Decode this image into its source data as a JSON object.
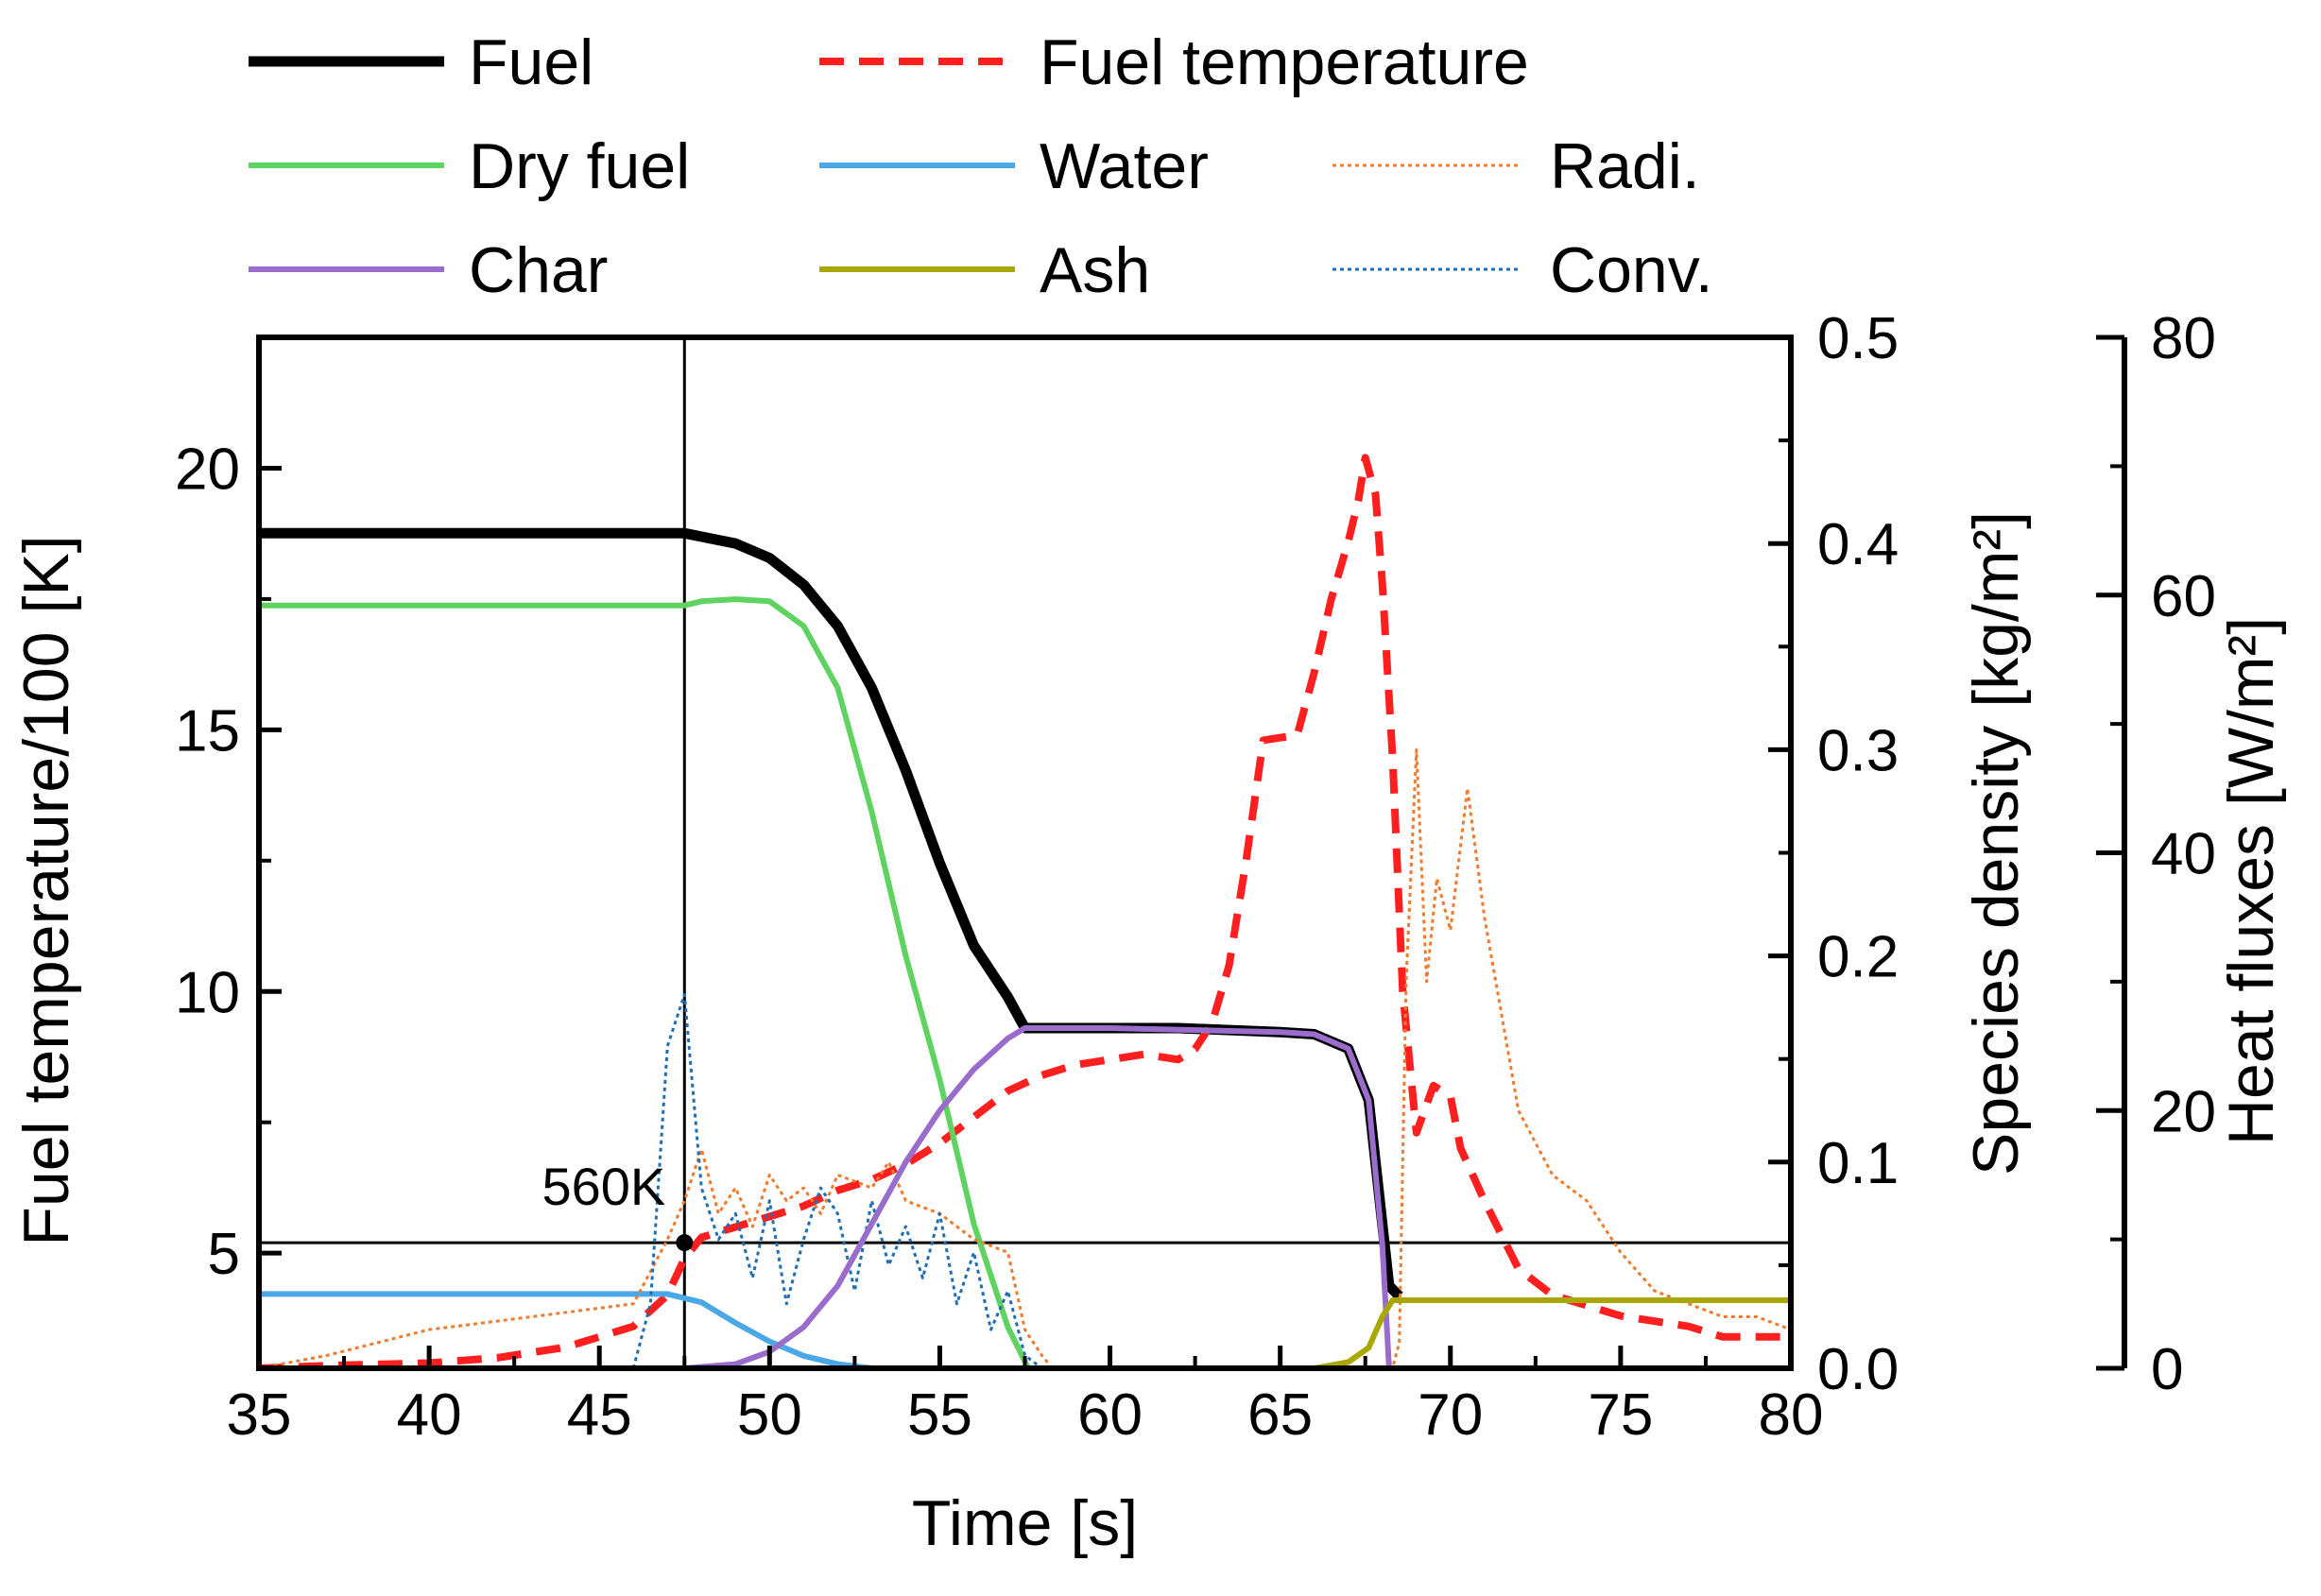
{
  "chart_data": {
    "type": "line",
    "title": "",
    "xlabel": "Time [s]",
    "xlim": [
      35,
      80
    ],
    "xticks": [
      35,
      40,
      45,
      50,
      55,
      60,
      65,
      70,
      75,
      80
    ],
    "y_axes": {
      "temperature": {
        "label": "Fuel temperature/100 [K]",
        "lim": [
          2.8,
          22.5
        ],
        "ticks": [
          5,
          10,
          15,
          20
        ]
      },
      "density": {
        "label": "Species density [kg/m²]",
        "lim": [
          0,
          0.5
        ],
        "ticks": [
          "0.0",
          "0.1",
          "0.2",
          "0.3",
          "0.4",
          "0.5"
        ]
      },
      "heat_flux": {
        "label": "Heat fluxes [W/m²]",
        "lim": [
          0,
          80
        ],
        "ticks": [
          0,
          20,
          40,
          60,
          80
        ]
      }
    },
    "reference_lines": {
      "vertical_time": 47.5,
      "horizontal_temperature": 5.2,
      "annotation": "560K"
    },
    "series": [
      {
        "name": "Fuel",
        "axis": "density",
        "color": "#000000",
        "style": "solid-thick",
        "points": [
          [
            35,
            0.405
          ],
          [
            47.5,
            0.405
          ],
          [
            49,
            0.4
          ],
          [
            50,
            0.393
          ],
          [
            51,
            0.38
          ],
          [
            52,
            0.36
          ],
          [
            53,
            0.33
          ],
          [
            54,
            0.29
          ],
          [
            55,
            0.245
          ],
          [
            56,
            0.205
          ],
          [
            57,
            0.18
          ],
          [
            57.5,
            0.165
          ],
          [
            60,
            0.165
          ],
          [
            62,
            0.165
          ],
          [
            65,
            0.163
          ],
          [
            66,
            0.162
          ],
          [
            67,
            0.155
          ],
          [
            67.6,
            0.13
          ],
          [
            68,
            0.07
          ],
          [
            68.2,
            0.04
          ],
          [
            68.5,
            0.035
          ]
        ]
      },
      {
        "name": "Fuel temperature",
        "axis": "temperature",
        "color": "#ff1f1f",
        "style": "dashed",
        "points": [
          [
            35,
            2.8
          ],
          [
            37,
            2.85
          ],
          [
            40,
            2.9
          ],
          [
            42,
            3.0
          ],
          [
            44,
            3.2
          ],
          [
            46,
            3.6
          ],
          [
            47,
            4.2
          ],
          [
            47.5,
            4.9
          ],
          [
            48,
            5.3
          ],
          [
            49,
            5.5
          ],
          [
            50,
            5.7
          ],
          [
            51,
            5.9
          ],
          [
            52,
            6.2
          ],
          [
            53,
            6.4
          ],
          [
            54,
            6.7
          ],
          [
            55,
            7.1
          ],
          [
            56,
            7.6
          ],
          [
            57,
            8.1
          ],
          [
            58,
            8.4
          ],
          [
            59,
            8.6
          ],
          [
            60,
            8.7
          ],
          [
            61,
            8.8
          ],
          [
            62,
            8.7
          ],
          [
            62.5,
            8.9
          ],
          [
            63,
            9.4
          ],
          [
            63.5,
            10.5
          ],
          [
            64,
            12.5
          ],
          [
            64.5,
            14.8
          ],
          [
            65.5,
            14.9
          ],
          [
            66,
            16.1
          ],
          [
            66.5,
            17.5
          ],
          [
            67,
            18.6
          ],
          [
            67.3,
            19.4
          ],
          [
            67.5,
            20.2
          ],
          [
            67.8,
            19.5
          ],
          [
            68,
            17.8
          ],
          [
            68.3,
            14.5
          ],
          [
            68.6,
            10.0
          ],
          [
            69,
            7.3
          ],
          [
            69.5,
            8.2
          ],
          [
            70,
            8.0
          ],
          [
            70.3,
            7.0
          ],
          [
            71,
            6.0
          ],
          [
            72,
            4.7
          ],
          [
            73,
            4.2
          ],
          [
            74,
            4.0
          ],
          [
            75,
            3.8
          ],
          [
            76,
            3.7
          ],
          [
            77,
            3.6
          ],
          [
            78,
            3.4
          ],
          [
            79,
            3.4
          ],
          [
            80,
            3.4
          ]
        ]
      },
      {
        "name": "Dry fuel",
        "axis": "density",
        "color": "#5fd35f",
        "style": "solid",
        "points": [
          [
            35,
            0.37
          ],
          [
            47.5,
            0.37
          ],
          [
            48,
            0.372
          ],
          [
            49,
            0.373
          ],
          [
            50,
            0.372
          ],
          [
            51,
            0.36
          ],
          [
            52,
            0.33
          ],
          [
            53,
            0.27
          ],
          [
            54,
            0.2
          ],
          [
            55,
            0.14
          ],
          [
            56,
            0.07
          ],
          [
            57,
            0.02
          ],
          [
            57.6,
            0.0
          ]
        ]
      },
      {
        "name": "Water",
        "axis": "density",
        "color": "#4aa8e6",
        "style": "solid",
        "points": [
          [
            35,
            0.036
          ],
          [
            47,
            0.036
          ],
          [
            48,
            0.032
          ],
          [
            49,
            0.022
          ],
          [
            50,
            0.013
          ],
          [
            51,
            0.006
          ],
          [
            52,
            0.002
          ],
          [
            53,
            0.0
          ]
        ]
      },
      {
        "name": "Radi.",
        "axis": "heat_flux",
        "color": "#ef7b2c",
        "style": "dotted",
        "points": [
          [
            35,
            0
          ],
          [
            37,
            1
          ],
          [
            40,
            3
          ],
          [
            43,
            4
          ],
          [
            46,
            5
          ],
          [
            47,
            10
          ],
          [
            47.5,
            13
          ],
          [
            48,
            17
          ],
          [
            48.5,
            12
          ],
          [
            49,
            14
          ],
          [
            49.5,
            11
          ],
          [
            50,
            15
          ],
          [
            50.5,
            13
          ],
          [
            51,
            14
          ],
          [
            51.5,
            12
          ],
          [
            52,
            15
          ],
          [
            53,
            14
          ],
          [
            53.5,
            16
          ],
          [
            54,
            13
          ],
          [
            55,
            12
          ],
          [
            56,
            10
          ],
          [
            57,
            9
          ],
          [
            57.5,
            3
          ],
          [
            58,
            1
          ],
          [
            58.3,
            0
          ],
          [
            68.3,
            0
          ],
          [
            68.5,
            2
          ],
          [
            68.7,
            30
          ],
          [
            69,
            48
          ],
          [
            69.3,
            30
          ],
          [
            69.6,
            38
          ],
          [
            70,
            34
          ],
          [
            70.5,
            45
          ],
          [
            71,
            35
          ],
          [
            72,
            20
          ],
          [
            73,
            15
          ],
          [
            74,
            13
          ],
          [
            75,
            9
          ],
          [
            76,
            6
          ],
          [
            77,
            5
          ],
          [
            78,
            4
          ],
          [
            79,
            4
          ],
          [
            80,
            3
          ]
        ]
      },
      {
        "name": "Conv.",
        "axis": "heat_flux",
        "color": "#1f6fb4",
        "style": "dotted",
        "points": [
          [
            46,
            0
          ],
          [
            46.5,
            5
          ],
          [
            47,
            25
          ],
          [
            47.5,
            29
          ],
          [
            48,
            14
          ],
          [
            48.5,
            10
          ],
          [
            49,
            12
          ],
          [
            49.5,
            7
          ],
          [
            50,
            13
          ],
          [
            50.5,
            5
          ],
          [
            51,
            10
          ],
          [
            51.5,
            14
          ],
          [
            52,
            12
          ],
          [
            52.5,
            6
          ],
          [
            53,
            13
          ],
          [
            53.5,
            8
          ],
          [
            54,
            11
          ],
          [
            54.5,
            7
          ],
          [
            55,
            12
          ],
          [
            55.5,
            5
          ],
          [
            56,
            9
          ],
          [
            56.5,
            3
          ],
          [
            57,
            6
          ],
          [
            57.5,
            1
          ],
          [
            58,
            0
          ]
        ]
      },
      {
        "name": "Char",
        "axis": "density",
        "color": "#9a6dcc",
        "style": "solid",
        "points": [
          [
            47.5,
            0.0
          ],
          [
            49,
            0.002
          ],
          [
            50,
            0.008
          ],
          [
            51,
            0.02
          ],
          [
            52,
            0.04
          ],
          [
            53,
            0.07
          ],
          [
            54,
            0.1
          ],
          [
            55,
            0.125
          ],
          [
            56,
            0.145
          ],
          [
            57,
            0.16
          ],
          [
            57.5,
            0.165
          ],
          [
            60,
            0.165
          ],
          [
            65,
            0.163
          ],
          [
            66,
            0.162
          ],
          [
            67,
            0.155
          ],
          [
            67.6,
            0.13
          ],
          [
            68,
            0.06
          ],
          [
            68.2,
            0.0
          ]
        ]
      },
      {
        "name": "Ash",
        "axis": "density",
        "color": "#a8a800",
        "style": "solid",
        "points": [
          [
            64,
            0.0
          ],
          [
            66,
            0.0
          ],
          [
            67,
            0.003
          ],
          [
            67.6,
            0.01
          ],
          [
            68,
            0.025
          ],
          [
            68.3,
            0.033
          ],
          [
            69,
            0.033
          ],
          [
            80,
            0.033
          ]
        ]
      }
    ],
    "legend": {
      "placement": "top",
      "entries": [
        "Fuel",
        "Fuel temperature",
        "Dry fuel",
        "Water",
        "Radi.",
        "Char",
        "Ash",
        "Conv."
      ]
    }
  }
}
